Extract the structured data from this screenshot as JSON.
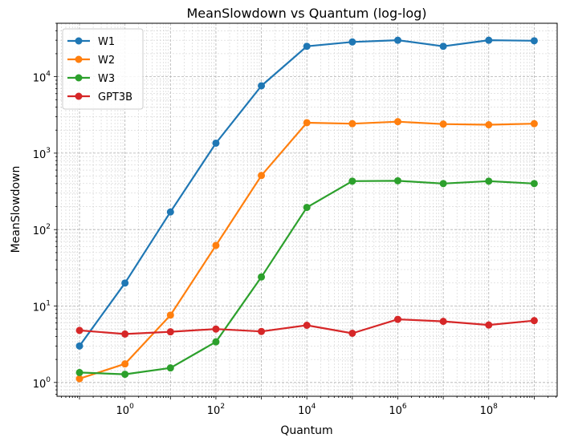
{
  "chart_data": {
    "type": "line",
    "title": "MeanSlowdown vs Quantum (log-log)",
    "xlabel": "Quantum",
    "ylabel": "MeanSlowdown",
    "xscale": "log",
    "yscale": "log",
    "xlim": [
      0.032,
      3200000000.0
    ],
    "ylim": [
      0.66,
      50000
    ],
    "grid": true,
    "legend": "top-left",
    "x": [
      0.1,
      1,
      10,
      100,
      1000,
      10000,
      100000,
      1000000,
      10000000,
      100000000,
      1000000000
    ],
    "x_ticks": [
      {
        "value": 1,
        "base": "10",
        "exp": "0"
      },
      {
        "value": 100,
        "base": "10",
        "exp": "2"
      },
      {
        "value": 10000,
        "base": "10",
        "exp": "4"
      },
      {
        "value": 1000000,
        "base": "10",
        "exp": "6"
      },
      {
        "value": 100000000,
        "base": "10",
        "exp": "8"
      }
    ],
    "y_ticks": [
      {
        "value": 1,
        "base": "10",
        "exp": "0"
      },
      {
        "value": 10,
        "base": "10",
        "exp": "1"
      },
      {
        "value": 100,
        "base": "10",
        "exp": "2"
      },
      {
        "value": 1000,
        "base": "10",
        "exp": "3"
      },
      {
        "value": 10000,
        "base": "10",
        "exp": "4"
      }
    ],
    "series": [
      {
        "name": "W1",
        "color": "#1f77b4",
        "values": [
          3.0,
          20,
          170,
          1350,
          7600,
          25000,
          28500,
          30000,
          25000,
          30000,
          29500
        ]
      },
      {
        "name": "W2",
        "color": "#ff7f0e",
        "values": [
          1.12,
          1.75,
          7.6,
          62,
          510,
          2500,
          2430,
          2580,
          2400,
          2350,
          2430
        ]
      },
      {
        "name": "W3",
        "color": "#2ca02c",
        "values": [
          1.35,
          1.28,
          1.55,
          3.4,
          24,
          195,
          430,
          435,
          400,
          430,
          400
        ]
      },
      {
        "name": "GPT3B",
        "color": "#d62728",
        "values": [
          4.8,
          4.3,
          4.6,
          5.0,
          4.65,
          5.6,
          4.4,
          6.7,
          6.3,
          5.65,
          6.45
        ]
      }
    ]
  }
}
